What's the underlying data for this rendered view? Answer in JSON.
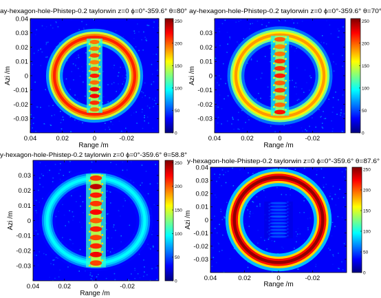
{
  "chart_data": [
    {
      "type": "heatmap",
      "title": "ay-hexagon-hole-Phistep-0.2  taylorwin  z=0  ϕ=0°-359.6°  θ=80°",
      "xlabel": "Range /m",
      "ylabel": "Azi /m",
      "xlim": [
        0.04,
        -0.04
      ],
      "ylim": [
        -0.04,
        0.04
      ],
      "x_ticks": [
        "0.04",
        "0.02",
        "0",
        "-0.02"
      ],
      "y_ticks": [
        "0.04",
        "0.03",
        "0.02",
        "0.01",
        "0",
        "-0.01",
        "-0.02",
        "-0.03"
      ],
      "colorbar_ticks": [
        "250",
        "200",
        "150",
        "100",
        "50",
        "0"
      ],
      "clim": [
        0,
        255
      ],
      "ring": {
        "center": [
          0,
          0
        ],
        "radius_x": 0.025,
        "radius_y": 0.024,
        "width": 0.004,
        "peak_value": 215
      },
      "stripe": {
        "center_x": 0,
        "half_width": 0.0035,
        "y_extent": 0.026,
        "peak_value": 230
      }
    },
    {
      "type": "heatmap",
      "title": "ay-hexagon-hole-Phistep-0.2  taylorwin  z=0  ϕ=0°-359.6°  θ=70°",
      "xlabel": "Range /m",
      "ylabel": "Azi /m",
      "xlim": [
        0.04,
        -0.04
      ],
      "ylim": [
        -0.04,
        0.04
      ],
      "x_ticks": [
        "0.04",
        "0.02",
        "0",
        "-0.02"
      ],
      "y_ticks": [
        "0.03",
        "0.02",
        "0.01",
        "0",
        "-0.01",
        "-0.02",
        "-0.03"
      ],
      "colorbar_ticks": [
        "250",
        "200",
        "150",
        "100",
        "50",
        "0"
      ],
      "clim": [
        0,
        255
      ],
      "ring": {
        "center": [
          0,
          0
        ],
        "radius_x": 0.027,
        "radius_y": 0.025,
        "width": 0.004,
        "peak_value": 185
      },
      "stripe": {
        "center_x": 0,
        "half_width": 0.004,
        "y_extent": 0.028,
        "peak_value": 225
      }
    },
    {
      "type": "heatmap",
      "title": "y-hexagon-hole-Phistep-0.2  taylorwin  z=0  ϕ=0°-359.6°  θ=58.8°",
      "xlabel": "Range /m",
      "ylabel": "Azi /m",
      "xlim": [
        0.04,
        -0.04
      ],
      "ylim": [
        -0.04,
        0.04
      ],
      "x_ticks": [
        "0.04",
        "0.02",
        "0",
        "-0.02"
      ],
      "y_ticks": [
        "0.03",
        "0.02",
        "0.01",
        "0",
        "-0.01",
        "-0.02",
        "-0.03"
      ],
      "colorbar_ticks": [
        "250",
        "200",
        "150",
        "100",
        "50",
        "0"
      ],
      "clim": [
        0,
        255
      ],
      "ring": {
        "center": [
          0,
          0
        ],
        "radius_x": 0.031,
        "radius_y": 0.027,
        "width": 0.004,
        "peak_value": 95
      },
      "stripe": {
        "center_x": 0,
        "half_width": 0.0045,
        "y_extent": 0.031,
        "peak_value": 240
      }
    },
    {
      "type": "heatmap",
      "title": "y-hexagon-hole-Phistep-0.2  taylorwin  z=0  ϕ=0°-359.6°  θ=87.6°",
      "xlabel": "Range /m",
      "ylabel": "Azi /m",
      "xlim": [
        0.04,
        -0.04
      ],
      "ylim": [
        -0.04,
        0.04
      ],
      "x_ticks": [
        "0.04",
        "0.02",
        "0",
        "-0.02"
      ],
      "y_ticks": [
        "0.04",
        "0.03",
        "0.02",
        "0.01",
        "0",
        "-0.01",
        "-0.02",
        "-0.03"
      ],
      "colorbar_ticks": [
        "250",
        "200",
        "150",
        "100",
        "50",
        "0"
      ],
      "clim": [
        0,
        255
      ],
      "ring": {
        "center": [
          0,
          0
        ],
        "radius_x": 0.026,
        "radius_y": 0.025,
        "width": 0.004,
        "peak_value": 250
      },
      "stripe": {
        "center_x": 0,
        "half_width": 0.006,
        "y_extent": 0.014,
        "peak_value": 55
      }
    }
  ]
}
